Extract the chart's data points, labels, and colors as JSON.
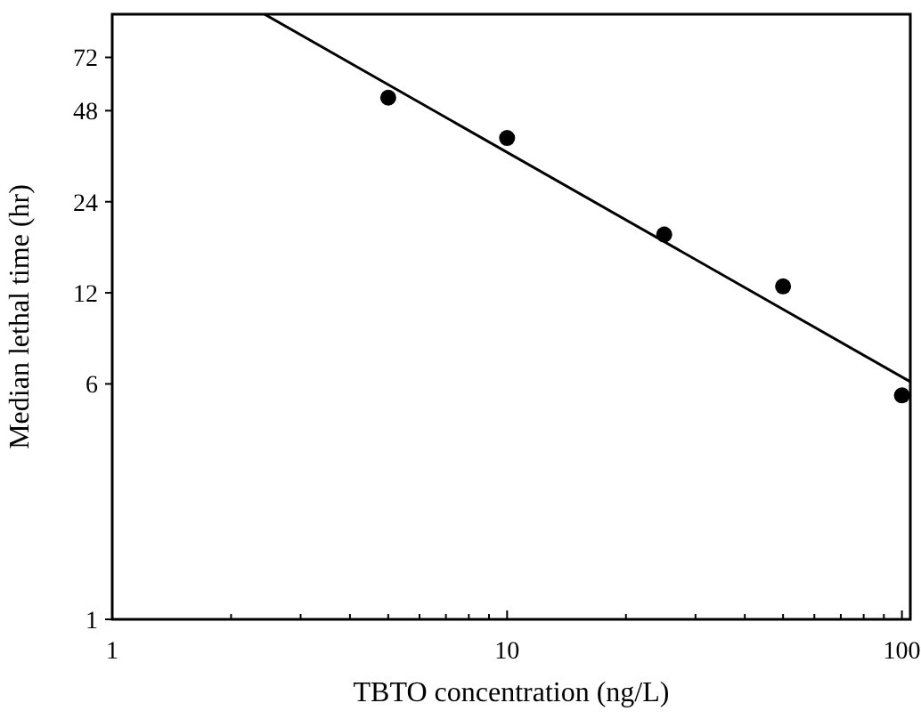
{
  "chart_data": {
    "type": "scatter",
    "xlabel": "TBTO concentration (ng/L)",
    "ylabel": "Median lethal time (hr)",
    "log": "xy",
    "marker": "circle",
    "grid": false,
    "xlim": [
      1,
      105
    ],
    "ylim": [
      1,
      100
    ],
    "xticks": [
      1,
      {
        "value": 2,
        "label": null
      },
      {
        "value": 3,
        "label": null
      },
      {
        "value": 4,
        "label": null
      },
      {
        "value": 5,
        "label": null
      },
      {
        "value": 6,
        "label": null
      },
      {
        "value": 7,
        "label": null
      },
      {
        "value": 8,
        "label": null
      },
      {
        "value": 9,
        "label": null
      },
      10,
      {
        "value": 20,
        "label": null
      },
      {
        "value": 30,
        "label": null
      },
      {
        "value": 40,
        "label": null
      },
      {
        "value": 50,
        "label": null
      },
      {
        "value": 60,
        "label": null
      },
      {
        "value": 70,
        "label": null
      },
      {
        "value": 80,
        "label": null
      },
      {
        "value": 90,
        "label": null
      },
      100
    ],
    "yticks": [
      1,
      6,
      12,
      24,
      48,
      72
    ],
    "series": [
      {
        "color": "#000000",
        "x": [
          5,
          10,
          25,
          50,
          100
        ],
        "values": [
          53,
          39,
          18.7,
          12.6,
          5.5
        ]
      },
      {
        "type": "line",
        "color": "#000000",
        "marker": "none",
        "line_style": "solid",
        "x": [
          2.43,
          105
        ],
        "values": [
          100,
          6.1
        ]
      }
    ]
  }
}
